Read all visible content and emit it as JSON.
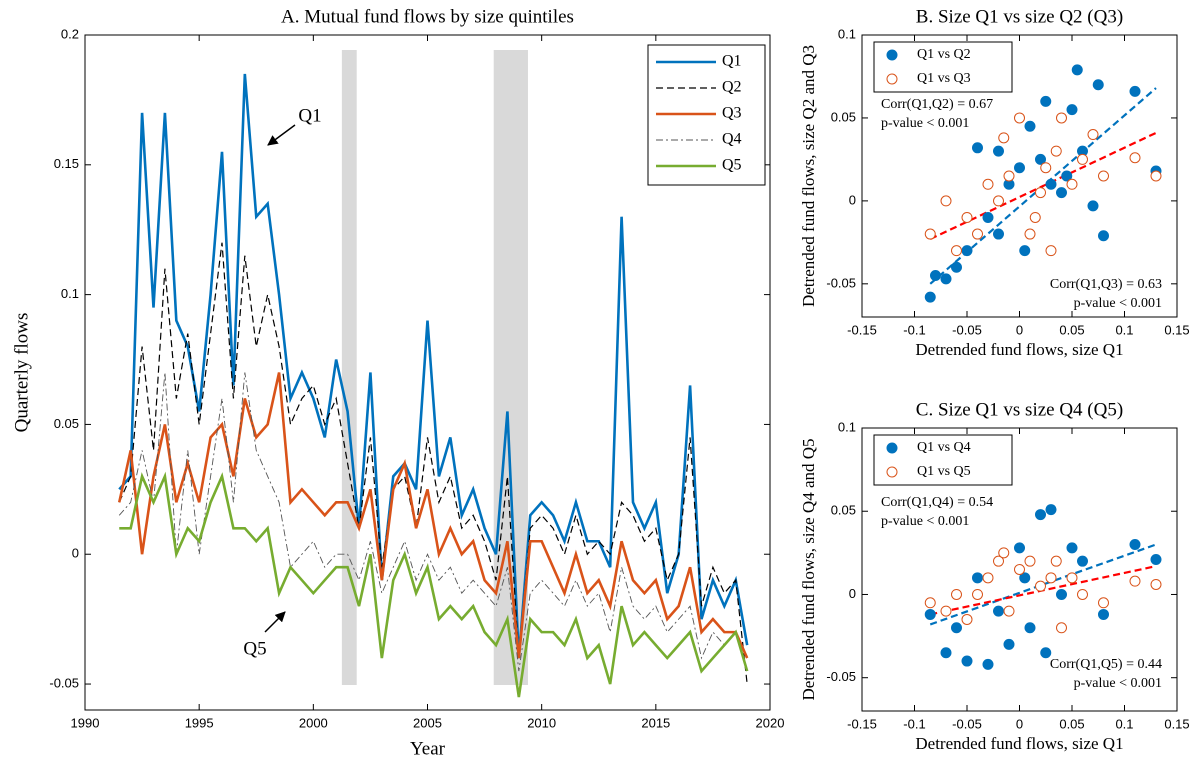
{
  "chart_data": [
    {
      "type": "line",
      "title": "A. Mutual fund flows by size quintiles",
      "x_label": "Year",
      "y_label": "Quarterly flows",
      "xlim": [
        1990,
        2020
      ],
      "xticks": [
        1990,
        1995,
        2000,
        2005,
        2010,
        2015,
        2020
      ],
      "ylim": [
        -0.06,
        0.2
      ],
      "yticks": [
        -0.05,
        0,
        0.05,
        0.1,
        0.15,
        0.2
      ],
      "legend": "northeast",
      "shaded": [
        [
          2001.25,
          2001.9
        ],
        [
          2007.9,
          2009.4
        ]
      ],
      "shade_color": "#d9d9d9",
      "x": [
        1991.5,
        1992,
        1992.5,
        1993,
        1993.5,
        1994,
        1994.5,
        1995,
        1995.5,
        1996,
        1996.5,
        1997,
        1997.5,
        1998,
        1998.5,
        1999,
        1999.5,
        2000,
        2000.5,
        2001,
        2001.5,
        2002,
        2002.5,
        2003,
        2003.5,
        2004,
        2004.5,
        2005,
        2005.5,
        2006,
        2006.5,
        2007,
        2007.5,
        2008,
        2008.5,
        2009,
        2009.5,
        2010,
        2010.5,
        2011,
        2011.5,
        2012,
        2012.5,
        2013,
        2013.5,
        2014,
        2014.5,
        2015,
        2015.5,
        2016,
        2016.5,
        2017,
        2017.5,
        2018,
        2018.5,
        2019
      ],
      "series": [
        {
          "name": "Q1",
          "color": "#0072bd",
          "style": "solid",
          "width": 2.6,
          "values": [
            0.025,
            0.03,
            0.17,
            0.095,
            0.17,
            0.09,
            0.08,
            0.055,
            0.1,
            0.155,
            0.065,
            0.185,
            0.13,
            0.135,
            0.1,
            0.06,
            0.07,
            0.06,
            0.045,
            0.075,
            0.055,
            0.01,
            0.07,
            -0.01,
            0.03,
            0.035,
            0.025,
            0.09,
            0.03,
            0.045,
            0.015,
            0.025,
            0.01,
            0,
            0.055,
            -0.04,
            0.015,
            0.02,
            0.015,
            0.005,
            0.02,
            0.005,
            0.005,
            -0.005,
            0.13,
            0.02,
            0.01,
            0.02,
            -0.015,
            0,
            0.065,
            -0.025,
            -0.01,
            -0.02,
            -0.01,
            -0.035
          ]
        },
        {
          "name": "Q2",
          "color": "#000000",
          "style": "dashed",
          "width": 1.2,
          "values": [
            0.02,
            0.03,
            0.08,
            0.04,
            0.11,
            0.06,
            0.085,
            0.05,
            0.085,
            0.12,
            0.06,
            0.115,
            0.08,
            0.1,
            0.08,
            0.05,
            0.06,
            0.065,
            0.05,
            0.06,
            0.035,
            0.01,
            0.045,
            -0.005,
            0.025,
            0.03,
            0.01,
            0.045,
            0.02,
            0.03,
            0.01,
            0.015,
            0.005,
            -0.01,
            0.03,
            -0.04,
            0.01,
            0.015,
            0.01,
            0,
            0.015,
            0,
            0.005,
            0,
            0.02,
            0.015,
            0.005,
            0.01,
            -0.01,
            0,
            0.045,
            -0.02,
            -0.005,
            -0.015,
            -0.01,
            -0.05
          ]
        },
        {
          "name": "Q3",
          "color": "#d95319",
          "style": "solid",
          "width": 2.6,
          "values": [
            0.02,
            0.04,
            0,
            0.03,
            0.05,
            0.02,
            0.035,
            0.02,
            0.045,
            0.05,
            0.03,
            0.06,
            0.045,
            0.05,
            0.07,
            0.02,
            0.025,
            0.02,
            0.015,
            0.02,
            0.02,
            0.01,
            0.025,
            -0.01,
            0.025,
            0.035,
            0.01,
            0.025,
            0,
            0.01,
            0,
            0.005,
            -0.01,
            -0.015,
            0.005,
            -0.04,
            0.005,
            0.005,
            -0.005,
            -0.015,
            0,
            -0.015,
            -0.01,
            -0.02,
            0.005,
            -0.01,
            -0.015,
            -0.01,
            -0.025,
            -0.02,
            -0.005,
            -0.03,
            -0.025,
            -0.03,
            -0.03,
            -0.04
          ]
        },
        {
          "name": "Q4",
          "color": "#555555",
          "style": "dashdot",
          "width": 0.9,
          "values": [
            0.015,
            0.02,
            0.04,
            0.02,
            0.07,
            0,
            0.04,
            0,
            0.03,
            0.06,
            0.02,
            0.07,
            0.04,
            0.03,
            0.02,
            -0.005,
            0,
            0.005,
            -0.005,
            0,
            0,
            -0.01,
            0.005,
            -0.015,
            -0.005,
            0.005,
            -0.01,
            0,
            -0.01,
            -0.005,
            -0.015,
            -0.01,
            -0.015,
            -0.02,
            -0.005,
            -0.045,
            -0.015,
            -0.01,
            -0.015,
            -0.02,
            -0.01,
            -0.02,
            -0.015,
            -0.03,
            -0.005,
            -0.02,
            -0.025,
            -0.02,
            -0.03,
            -0.025,
            -0.02,
            -0.04,
            -0.03,
            -0.035,
            -0.03,
            -0.045
          ]
        },
        {
          "name": "Q5",
          "color": "#77ac30",
          "style": "solid",
          "width": 2.6,
          "values": [
            0.01,
            0.01,
            0.03,
            0.02,
            0.03,
            0,
            0.01,
            0.005,
            0.02,
            0.03,
            0.01,
            0.01,
            0.005,
            0.01,
            -0.015,
            -0.005,
            -0.01,
            -0.015,
            -0.01,
            -0.005,
            -0.005,
            -0.02,
            0,
            -0.04,
            -0.01,
            0,
            -0.015,
            -0.005,
            -0.025,
            -0.02,
            -0.025,
            -0.02,
            -0.03,
            -0.035,
            -0.025,
            -0.055,
            -0.025,
            -0.03,
            -0.03,
            -0.035,
            -0.025,
            -0.04,
            -0.035,
            -0.05,
            -0.02,
            -0.035,
            -0.03,
            -0.035,
            -0.04,
            -0.035,
            -0.03,
            -0.045,
            -0.04,
            -0.035,
            -0.03,
            -0.045
          ]
        }
      ],
      "annotations": [
        "Q1",
        "Q5"
      ]
    },
    {
      "type": "scatter",
      "title": "B. Size Q1 vs size Q2 (Q3)",
      "x_label": "Detrended fund flows, size Q1",
      "y_label": "Detrended fund flows, size Q2 and Q3",
      "xlim": [
        -0.15,
        0.15
      ],
      "xticks": [
        -0.15,
        -0.1,
        -0.05,
        0,
        0.05,
        0.1,
        0.15
      ],
      "ylim": [
        -0.07,
        0.1
      ],
      "yticks": [
        -0.05,
        0,
        0.05,
        0.1
      ],
      "legend": "northwest",
      "series": [
        {
          "name": "Q1 vs Q2",
          "color": "#0072bd",
          "marker": "filled",
          "x": [
            -0.085,
            -0.08,
            -0.07,
            -0.06,
            -0.05,
            -0.04,
            -0.03,
            -0.02,
            -0.01,
            0,
            0.005,
            0.01,
            0.02,
            0.03,
            0.04,
            0.05,
            0.055,
            0.06,
            0.07,
            0.075,
            0.08,
            0.11,
            0.13,
            -0.02,
            0.025,
            0.045
          ],
          "values": [
            -0.058,
            -0.045,
            -0.047,
            -0.04,
            -0.03,
            0.032,
            -0.01,
            -0.02,
            0.01,
            0.02,
            -0.03,
            0.045,
            0.025,
            0.01,
            0.005,
            0.055,
            0.079,
            0.03,
            -0.003,
            0.07,
            -0.021,
            0.066,
            0.018,
            0.03,
            0.06,
            0.015
          ]
        },
        {
          "name": "Q1 vs Q3",
          "color": "#d95319",
          "marker": "open",
          "x": [
            -0.085,
            -0.07,
            -0.06,
            -0.05,
            -0.04,
            -0.03,
            -0.02,
            -0.01,
            0,
            0.01,
            0.02,
            0.03,
            0.035,
            0.04,
            0.05,
            0.06,
            0.07,
            0.08,
            0.11,
            0.13,
            -0.015,
            0.025,
            0.015
          ],
          "values": [
            -0.02,
            0,
            -0.03,
            -0.01,
            -0.02,
            0.01,
            0,
            0.015,
            0.05,
            -0.02,
            0.005,
            -0.03,
            0.03,
            0.05,
            0.01,
            0.025,
            0.04,
            0.015,
            0.026,
            0.015,
            0.038,
            0.02,
            -0.01
          ]
        }
      ],
      "fits": [
        {
          "color": "#0072bd",
          "x": [
            -0.085,
            0.13
          ],
          "values": [
            -0.05,
            0.068
          ]
        },
        {
          "color": "#ff0000",
          "x": [
            -0.085,
            0.13
          ],
          "values": [
            -0.023,
            0.041
          ]
        }
      ],
      "annotations": [
        [
          "Corr(Q1,Q2) = 0.67",
          "p-value < 0.001"
        ],
        [
          "Corr(Q1,Q3) = 0.63",
          "p-value < 0.001"
        ]
      ]
    },
    {
      "type": "scatter",
      "title": "C. Size Q1 vs size Q4 (Q5)",
      "x_label": "Detrended fund flows, size Q1",
      "y_label": "Detrended fund flows, size Q4 and Q5",
      "xlim": [
        -0.15,
        0.15
      ],
      "xticks": [
        -0.15,
        -0.1,
        -0.05,
        0,
        0.05,
        0.1,
        0.15
      ],
      "ylim": [
        -0.07,
        0.1
      ],
      "yticks": [
        -0.05,
        0,
        0.05,
        0.1
      ],
      "legend": "northwest",
      "series": [
        {
          "name": "Q1 vs Q4",
          "color": "#0072bd",
          "marker": "filled",
          "x": [
            -0.085,
            -0.07,
            -0.06,
            -0.05,
            -0.03,
            -0.02,
            -0.01,
            0,
            0.01,
            0.02,
            0.03,
            0.04,
            0.05,
            0.06,
            0.08,
            0.11,
            0.13,
            -0.04,
            0.025,
            0.005
          ],
          "values": [
            -0.012,
            -0.035,
            -0.02,
            -0.04,
            -0.042,
            -0.01,
            -0.03,
            0.028,
            -0.02,
            0.048,
            0.051,
            0,
            0.028,
            0.02,
            -0.012,
            0.03,
            0.021,
            0.01,
            -0.035,
            0.01
          ]
        },
        {
          "name": "Q1 vs Q5",
          "color": "#d95319",
          "marker": "open",
          "x": [
            -0.085,
            -0.07,
            -0.06,
            -0.05,
            -0.04,
            -0.03,
            -0.02,
            -0.01,
            0,
            0.01,
            0.02,
            0.03,
            0.04,
            0.05,
            0.06,
            0.08,
            0.11,
            0.13,
            -0.015,
            0.035
          ],
          "values": [
            -0.005,
            -0.01,
            0,
            -0.015,
            0,
            0.01,
            0.02,
            -0.01,
            0.015,
            0.02,
            0.005,
            0.01,
            -0.02,
            0.01,
            0,
            -0.005,
            0.008,
            0.006,
            0.025,
            0.02
          ]
        }
      ],
      "fits": [
        {
          "color": "#0072bd",
          "x": [
            -0.085,
            0.13
          ],
          "values": [
            -0.018,
            0.03
          ]
        },
        {
          "color": "#ff0000",
          "x": [
            -0.085,
            0.13
          ],
          "values": [
            -0.012,
            0.017
          ]
        }
      ],
      "annotations": [
        [
          "Corr(Q1,Q4) = 0.54",
          "p-value < 0.001"
        ],
        [
          "Corr(Q1,Q5) = 0.44",
          "p-value < 0.001"
        ]
      ]
    }
  ]
}
